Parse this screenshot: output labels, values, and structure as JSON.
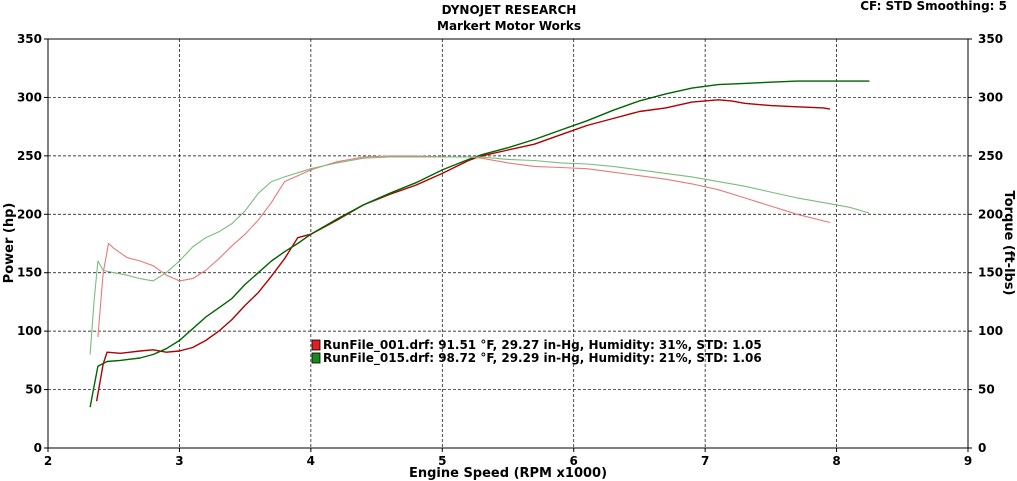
{
  "header": {
    "title": "DYNOJET RESEARCH",
    "subtitle": "Markert Motor Works",
    "settings": "CF: STD  Smoothing: 5"
  },
  "chart_data": {
    "type": "line",
    "xlabel": "Engine Speed (RPM x1000)",
    "ylabel_left": "Power (hp)",
    "ylabel_right": "Torque (ft-lbs)",
    "xlim": [
      2,
      9
    ],
    "ylim": [
      0,
      350
    ],
    "x_ticks": [
      2,
      3,
      4,
      5,
      6,
      7,
      8,
      9
    ],
    "y_ticks": [
      0,
      50,
      100,
      150,
      200,
      250,
      300,
      350
    ],
    "grid": true,
    "legend_position": "center",
    "legend": [
      {
        "label": "RunFile_001.drf: 91.51 °F, 29.27 in-Hg, Humidity: 31%, STD: 1.05",
        "color": "#e02020"
      },
      {
        "label": "RunFile_015.drf: 98.72 °F, 29.29 in-Hg, Humidity: 21%, STD: 1.06",
        "color": "#1a8a1a"
      }
    ],
    "series": [
      {
        "run": "RunFile_001.drf",
        "measure": "power",
        "color": "#b00000",
        "stroke": "dark",
        "x": [
          2.37,
          2.42,
          2.45,
          2.55,
          2.7,
          2.8,
          2.9,
          3.0,
          3.1,
          3.2,
          3.3,
          3.4,
          3.5,
          3.6,
          3.7,
          3.8,
          3.9,
          4.0,
          4.2,
          4.4,
          4.6,
          4.8,
          5.0,
          5.2,
          5.3,
          5.5,
          5.7,
          5.9,
          6.1,
          6.3,
          6.5,
          6.7,
          6.9,
          7.1,
          7.2,
          7.3,
          7.5,
          7.7,
          7.9,
          7.95
        ],
        "y": [
          40,
          72,
          82,
          81,
          83,
          84,
          82,
          83,
          86,
          92,
          100,
          110,
          122,
          133,
          147,
          162,
          180,
          183,
          195,
          208,
          217,
          225,
          235,
          246,
          250,
          255,
          260,
          268,
          276,
          282,
          288,
          291,
          296,
          298,
          297,
          295,
          293,
          292,
          291,
          290
        ]
      },
      {
        "run": "RunFile_015.drf",
        "measure": "power",
        "color": "#006400",
        "stroke": "dark",
        "x": [
          2.32,
          2.38,
          2.45,
          2.55,
          2.7,
          2.8,
          2.9,
          3.0,
          3.1,
          3.2,
          3.3,
          3.4,
          3.5,
          3.6,
          3.7,
          3.8,
          3.9,
          4.0,
          4.2,
          4.4,
          4.6,
          4.8,
          5.0,
          5.2,
          5.3,
          5.5,
          5.7,
          5.9,
          6.1,
          6.3,
          6.5,
          6.7,
          6.9,
          7.1,
          7.3,
          7.5,
          7.7,
          7.9,
          8.1,
          8.25
        ],
        "y": [
          35,
          70,
          74,
          75,
          77,
          80,
          85,
          92,
          102,
          112,
          120,
          128,
          140,
          150,
          160,
          168,
          175,
          183,
          196,
          208,
          218,
          227,
          238,
          247,
          251,
          257,
          264,
          272,
          280,
          289,
          297,
          303,
          308,
          311,
          312,
          313,
          314,
          314,
          314,
          314
        ]
      },
      {
        "run": "RunFile_001.drf",
        "measure": "torque",
        "color": "#e87a7a",
        "stroke": "light",
        "x": [
          2.38,
          2.42,
          2.46,
          2.5,
          2.6,
          2.7,
          2.8,
          2.9,
          3.0,
          3.1,
          3.2,
          3.3,
          3.4,
          3.5,
          3.6,
          3.7,
          3.8,
          4.0,
          4.2,
          4.4,
          4.6,
          4.8,
          5.0,
          5.2,
          5.3,
          5.5,
          5.7,
          5.9,
          6.1,
          6.3,
          6.5,
          6.7,
          6.9,
          7.1,
          7.3,
          7.5,
          7.7,
          7.95
        ],
        "y": [
          95,
          150,
          175,
          171,
          163,
          160,
          156,
          148,
          143,
          145,
          152,
          162,
          173,
          183,
          195,
          210,
          228,
          238,
          245,
          249,
          250,
          250,
          249,
          249,
          248,
          244,
          241,
          240,
          239,
          236,
          233,
          230,
          226,
          221,
          214,
          207,
          200,
          193
        ]
      },
      {
        "run": "RunFile_015.drf",
        "measure": "torque",
        "color": "#7dbb7d",
        "stroke": "light",
        "x": [
          2.32,
          2.35,
          2.38,
          2.42,
          2.5,
          2.6,
          2.7,
          2.8,
          2.9,
          3.0,
          3.1,
          3.2,
          3.3,
          3.4,
          3.5,
          3.6,
          3.7,
          3.8,
          4.0,
          4.2,
          4.4,
          4.6,
          4.8,
          5.0,
          5.2,
          5.3,
          5.5,
          5.7,
          5.9,
          6.1,
          6.3,
          6.5,
          6.7,
          6.9,
          7.1,
          7.3,
          7.5,
          7.7,
          7.9,
          8.1,
          8.25
        ],
        "y": [
          80,
          125,
          160,
          152,
          150,
          148,
          145,
          143,
          150,
          160,
          172,
          180,
          185,
          192,
          203,
          218,
          228,
          232,
          239,
          244,
          248,
          249,
          249,
          249,
          249,
          249,
          247,
          246,
          244,
          243,
          241,
          238,
          235,
          232,
          228,
          224,
          219,
          214,
          210,
          206,
          201
        ]
      }
    ]
  }
}
